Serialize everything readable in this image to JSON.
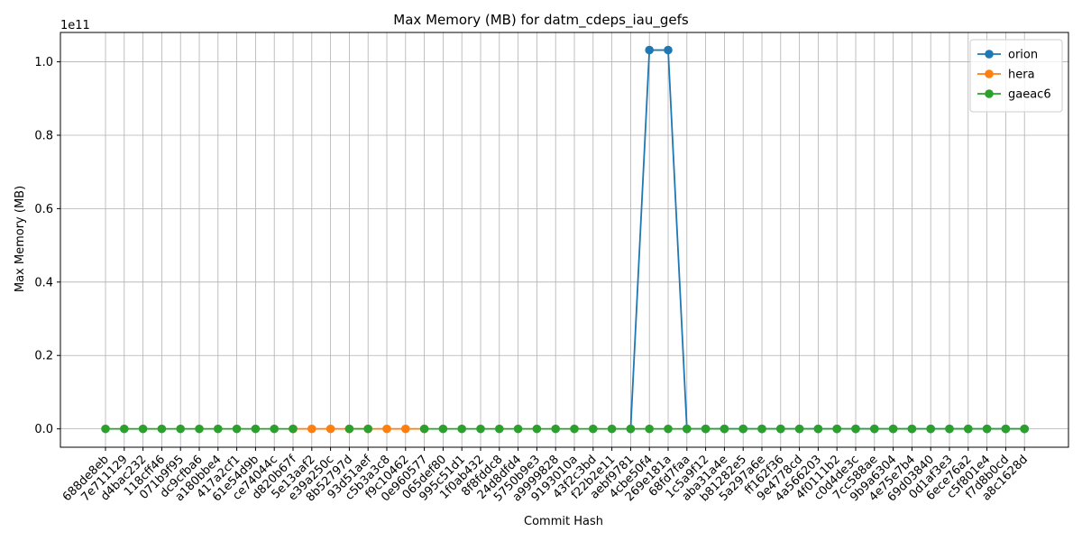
{
  "chart_data": {
    "type": "line",
    "title": "Max Memory (MB) for datm_cdeps_iau_gefs",
    "xlabel": "Commit Hash",
    "ylabel": "Max Memory (MB)",
    "y_offset_label": "1e11",
    "ylim": [
      -5000000000.0,
      108000000000.0
    ],
    "y_ticks": [
      0,
      20000000000.0,
      40000000000.0,
      60000000000.0,
      80000000000.0,
      100000000000.0
    ],
    "y_tick_labels": [
      "0.0",
      "0.2",
      "0.4",
      "0.6",
      "0.8",
      "1.0"
    ],
    "grid": true,
    "legend_position": "top-right",
    "categories": [
      "688de8eb",
      "7e711129",
      "d4bac232",
      "118cff46",
      "071b9f95",
      "dc9cfba6",
      "a180bbe4",
      "417a2cf1",
      "61e54d9b",
      "ce74044c",
      "d820b67f",
      "5e13aaf2",
      "e39a250c",
      "8b52797d",
      "93d51aef",
      "c5b3a3c8",
      "f9c10462",
      "0e960577",
      "065def80",
      "995c51d1",
      "1f0ab432",
      "8f8fddc8",
      "24d8dfd4",
      "5750b9e3",
      "a9999828",
      "9193010a",
      "43f2c3bd",
      "f22b2e11",
      "aebf9781",
      "4cbe50f4",
      "269e181a",
      "68fd7faa",
      "1c5a9f12",
      "aba31a4e",
      "b81282e5",
      "5a297a6e",
      "ff162f36",
      "9e4778cd",
      "4a566203",
      "4f0111b2",
      "c0d4de3c",
      "7cc588ae",
      "9b9a6304",
      "4e75e7b4",
      "69d03840",
      "0d1af3e3",
      "6ece76a2",
      "c5f801e4",
      "f7d8b0cd",
      "a8c1628d"
    ],
    "series": [
      {
        "name": "orion",
        "color": "#1f77b4",
        "values": [
          null,
          null,
          null,
          null,
          null,
          null,
          null,
          null,
          null,
          null,
          null,
          null,
          null,
          null,
          null,
          null,
          null,
          null,
          null,
          null,
          null,
          null,
          null,
          null,
          null,
          null,
          null,
          null,
          0,
          103200000000.0,
          103200000000.0,
          0,
          0,
          0,
          0,
          0,
          0,
          0,
          0,
          0,
          0,
          0,
          0,
          0,
          0,
          0,
          0,
          0,
          0,
          0
        ]
      },
      {
        "name": "hera",
        "color": "#ff7f0e",
        "values": [
          null,
          null,
          null,
          null,
          null,
          null,
          null,
          null,
          null,
          null,
          0,
          0,
          0,
          0,
          0,
          0,
          0,
          0,
          null,
          null,
          null,
          null,
          null,
          null,
          null,
          null,
          null,
          null,
          null,
          null,
          null,
          null,
          null,
          null,
          null,
          null,
          null,
          null,
          null,
          null,
          null,
          null,
          null,
          null,
          null,
          null,
          null,
          null,
          null,
          null
        ]
      },
      {
        "name": "gaeac6",
        "color": "#2ca02c",
        "values": [
          0,
          0,
          0,
          0,
          0,
          0,
          0,
          0,
          0,
          0,
          0,
          null,
          null,
          0,
          0,
          null,
          null,
          0,
          0,
          0,
          0,
          0,
          0,
          0,
          0,
          0,
          0,
          0,
          0,
          0,
          0,
          0,
          0,
          0,
          0,
          0,
          0,
          0,
          0,
          0,
          0,
          0,
          0,
          0,
          0,
          0,
          0,
          0,
          0,
          0
        ]
      }
    ]
  }
}
